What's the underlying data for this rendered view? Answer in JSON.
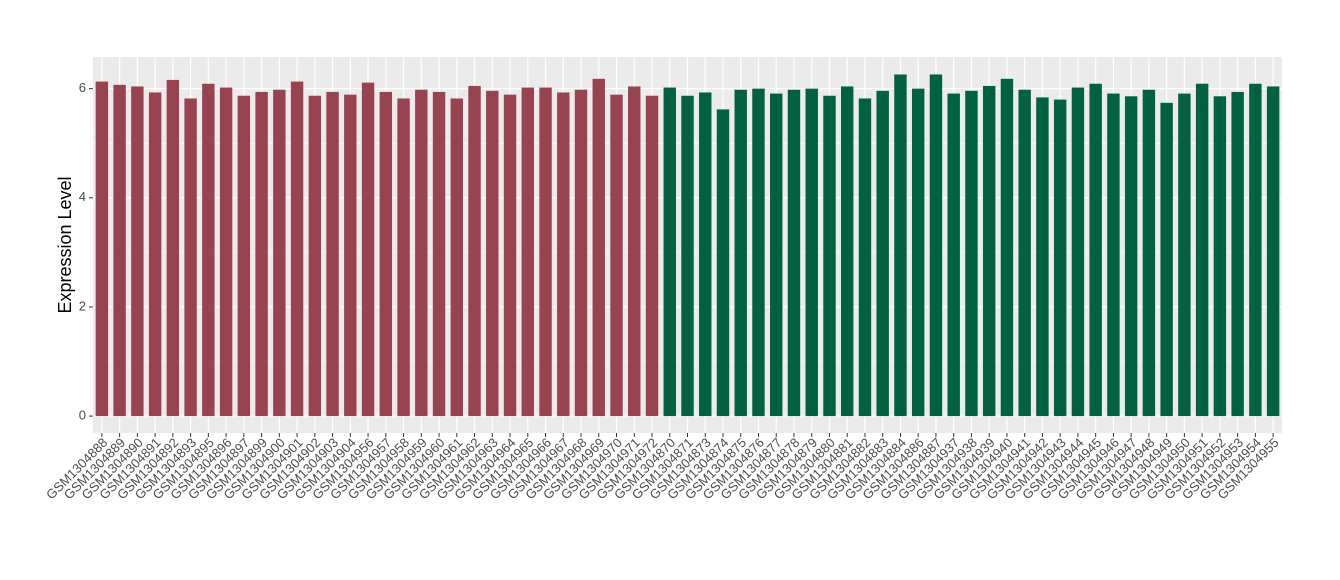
{
  "chart_data": {
    "type": "bar",
    "y_label": "Expression Level",
    "ylim": [
      -0.31,
      6.58
    ],
    "yticks": [
      0,
      2,
      4,
      6
    ],
    "grid": true,
    "series": [
      {
        "color": "#9a4350",
        "categories": [
          "GSM1304888",
          "GSM1304889",
          "GSM1304890",
          "GSM1304891",
          "GSM1304892",
          "GSM1304893",
          "GSM1304895",
          "GSM1304896",
          "GSM1304897",
          "GSM1304899",
          "GSM1304900",
          "GSM1304901",
          "GSM1304902",
          "GSM1304903",
          "GSM1304904",
          "GSM1304956",
          "GSM1304957",
          "GSM1304958",
          "GSM1304959",
          "GSM1304960",
          "GSM1304961",
          "GSM1304962",
          "GSM1304963",
          "GSM1304964",
          "GSM1304965",
          "GSM1304966",
          "GSM1304967",
          "GSM1304968",
          "GSM1304969",
          "GSM1304970",
          "GSM1304971",
          "GSM1304972"
        ],
        "values": [
          6.13,
          6.07,
          6.04,
          5.93,
          6.16,
          5.82,
          6.09,
          6.02,
          5.87,
          5.94,
          5.98,
          6.13,
          5.87,
          5.94,
          5.89,
          6.11,
          5.94,
          5.82,
          5.98,
          5.94,
          5.82,
          6.05,
          5.96,
          5.89,
          6.02,
          6.02,
          5.93,
          5.98,
          6.18,
          5.89,
          6.04,
          5.87
        ]
      },
      {
        "color": "#006241",
        "categories": [
          "GSM1304870",
          "GSM1304871",
          "GSM1304873",
          "GSM1304874",
          "GSM1304875",
          "GSM1304876",
          "GSM1304877",
          "GSM1304878",
          "GSM1304879",
          "GSM1304880",
          "GSM1304881",
          "GSM1304882",
          "GSM1304883",
          "GSM1304884",
          "GSM1304886",
          "GSM1304887",
          "GSM1304937",
          "GSM1304938",
          "GSM1304939",
          "GSM1304940",
          "GSM1304941",
          "GSM1304942",
          "GSM1304943",
          "GSM1304944",
          "GSM1304945",
          "GSM1304946",
          "GSM1304947",
          "GSM1304948",
          "GSM1304949",
          "GSM1304950",
          "GSM1304951",
          "GSM1304952",
          "GSM1304953",
          "GSM1304954",
          "GSM1304955"
        ],
        "values": [
          6.02,
          5.87,
          5.93,
          5.62,
          5.98,
          6.0,
          5.91,
          5.98,
          6.0,
          5.87,
          6.04,
          5.82,
          5.96,
          6.26,
          6.0,
          6.26,
          5.91,
          5.96,
          6.05,
          6.18,
          5.98,
          5.84,
          5.8,
          6.02,
          6.09,
          5.91,
          5.86,
          5.98,
          5.74,
          5.91,
          6.09,
          5.86,
          5.94,
          6.09,
          6.04
        ]
      }
    ]
  }
}
